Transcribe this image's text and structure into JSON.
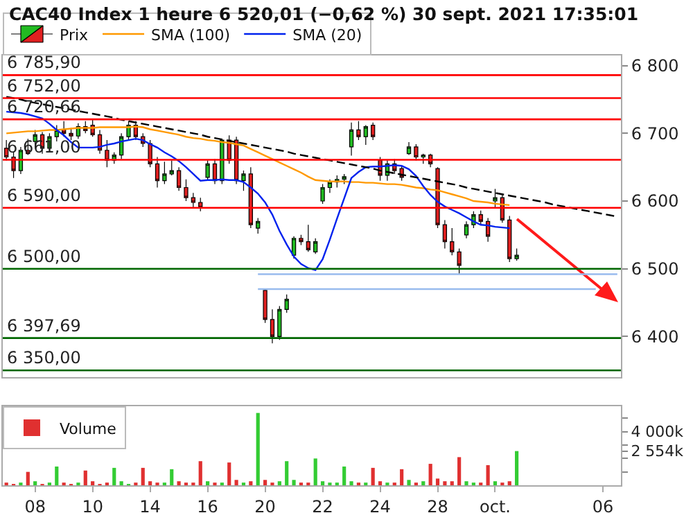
{
  "chart_data": [
    {
      "type": "candlestick",
      "title": "CAC40 Index 1 heure 6 520,01 (−0,62 %) 30 sept. 2021 17:35:01",
      "ylim": [
        6340,
        6815
      ],
      "categories": [
        null,
        null,
        null,
        null,
        null,
        null,
        null,
        null,
        null,
        null,
        null,
        null,
        null,
        null,
        null,
        null,
        null,
        null,
        null,
        null,
        null,
        null,
        null,
        null,
        null,
        null,
        null,
        null,
        null,
        null,
        null,
        null,
        null,
        null,
        null,
        null,
        null,
        null,
        null,
        null,
        null,
        null,
        null,
        null,
        null,
        null,
        null,
        null,
        null,
        null,
        null,
        null,
        null,
        null,
        null,
        null,
        null,
        null,
        null,
        null,
        null,
        null,
        null,
        null,
        null,
        null,
        null,
        null,
        null,
        null,
        null,
        null,
        null,
        null,
        null,
        null,
        null,
        null,
        null,
        null,
        null,
        null,
        null,
        null,
        null,
        null
      ],
      "yticks": [
        {
          "value": 6800,
          "label": "6 800"
        },
        {
          "value": 6700,
          "label": "6 700"
        },
        {
          "value": 6600,
          "label": "6 600"
        },
        {
          "value": 6500,
          "label": "6 500"
        },
        {
          "value": 6400,
          "label": "6 400"
        }
      ],
      "tick_labels": "y",
      "legend": "top left",
      "ref_lines": [
        {
          "axis": "y",
          "value": 6785.9,
          "label": "6 785,90",
          "color": "#ff0000"
        },
        {
          "axis": "y",
          "value": 6752,
          "label": "6 752,00",
          "color": "#ff0000"
        },
        {
          "axis": "y",
          "value": 6720.66,
          "label": "6 720,66",
          "color": "#ff0000"
        },
        {
          "axis": "y",
          "value": 6661,
          "label": "6 661,00",
          "color": "#ff0000"
        },
        {
          "axis": "y",
          "value": 6590,
          "label": "6 590,00",
          "color": "#ff0000"
        },
        {
          "axis": "y",
          "value": 6500,
          "label": "6 500,00",
          "color": "#006600"
        },
        {
          "axis": "y",
          "value": 6397.69,
          "label": "6 397,69",
          "color": "#006600"
        },
        {
          "axis": "y",
          "value": 6350,
          "label": "6 350,00",
          "color": "#006600"
        }
      ],
      "series": [
        {
          "name": "Prix",
          "type": "candlestick",
          "ohlc": [
            [
              6678,
              6690,
              6660,
              6665
            ],
            [
              6665,
              6672,
              6634,
              6645
            ],
            [
              6645,
              6680,
              6640,
              6675
            ],
            [
              6675,
              6692,
              6668,
              6670
            ],
            [
              6688,
              6705,
              6680,
              6698
            ],
            [
              6698,
              6702,
              6670,
              6678
            ],
            [
              6678,
              6700,
              6675,
              6695
            ],
            [
              6695,
              6712,
              6688,
              6705
            ],
            [
              6705,
              6718,
              6695,
              6700
            ],
            [
              6700,
              6708,
              6690,
              6696
            ],
            [
              6696,
              6715,
              6692,
              6710
            ],
            [
              6710,
              6718,
              6700,
              6704
            ],
            [
              6712,
              6720,
              6695,
              6698
            ],
            [
              6698,
              6705,
              6670,
              6675
            ],
            [
              6675,
              6690,
              6650,
              6660
            ],
            [
              6660,
              6672,
              6655,
              6668
            ],
            [
              6668,
              6700,
              6662,
              6695
            ],
            [
              6695,
              6718,
              6690,
              6712
            ],
            [
              6712,
              6718,
              6690,
              6695
            ],
            [
              6695,
              6700,
              6680,
              6685
            ],
            [
              6685,
              6690,
              6650,
              6655
            ],
            [
              6655,
              6665,
              6620,
              6630
            ],
            [
              6630,
              6658,
              6625,
              6640
            ],
            [
              6640,
              6660,
              6638,
              6645
            ],
            [
              6645,
              6650,
              6615,
              6620
            ],
            [
              6620,
              6632,
              6600,
              6605
            ],
            [
              6605,
              6612,
              6590,
              6598
            ],
            [
              6598,
              6605,
              6585,
              6590
            ],
            [
              6635,
              6660,
              6630,
              6655
            ],
            [
              6655,
              6662,
              6625,
              6630
            ],
            [
              6630,
              6692,
              6625,
              6690
            ],
            [
              6690,
              6697,
              6655,
              6660
            ],
            [
              6690,
              6695,
              6625,
              6630
            ],
            [
              6630,
              6645,
              6615,
              6640
            ],
            [
              6640,
              6650,
              6560,
              6565
            ],
            [
              6560,
              6575,
              6552,
              6570
            ],
            [
              6468,
              6470,
              6420,
              6425
            ],
            [
              6425,
              6440,
              6390,
              6400
            ],
            [
              6400,
              6445,
              6395,
              6440
            ],
            [
              6440,
              6462,
              6435,
              6455
            ],
            [
              6520,
              6548,
              6515,
              6545
            ],
            [
              6545,
              6550,
              6535,
              6540
            ],
            [
              6540,
              6565,
              6525,
              6528
            ],
            [
              6525,
              6545,
              6522,
              6540
            ],
            [
              6600,
              6625,
              6596,
              6620
            ],
            [
              6620,
              6632,
              6612,
              6628
            ],
            [
              6628,
              6638,
              6620,
              6632
            ],
            [
              6632,
              6640,
              6625,
              6636
            ],
            [
              6680,
              6716,
              6667,
              6705
            ],
            [
              6705,
              6718,
              6690,
              6695
            ],
            [
              6695,
              6712,
              6683,
              6710
            ],
            [
              6712,
              6716,
              6690,
              6695
            ],
            [
              6660,
              6665,
              6630,
              6638
            ],
            [
              6638,
              6660,
              6630,
              6655
            ],
            [
              6655,
              6662,
              6640,
              6645
            ],
            [
              6648,
              6652,
              6630,
              6635
            ],
            [
              6670,
              6687,
              6668,
              6680
            ],
            [
              6680,
              6684,
              6660,
              6665
            ],
            [
              6665,
              6670,
              6655,
              6668
            ],
            [
              6668,
              6670,
              6650,
              6655
            ],
            [
              6648,
              6650,
              6560,
              6565
            ],
            [
              6565,
              6572,
              6530,
              6540
            ],
            [
              6540,
              6560,
              6520,
              6525
            ],
            [
              6525,
              6530,
              6492,
              6505
            ],
            [
              6550,
              6570,
              6545,
              6565
            ],
            [
              6565,
              6585,
              6560,
              6580
            ],
            [
              6580,
              6586,
              6565,
              6570
            ],
            [
              6570,
              6575,
              6540,
              6548
            ],
            [
              6600,
              6618,
              6590,
              6605
            ],
            [
              6605,
              6610,
              6568,
              6572
            ],
            [
              6572,
              6578,
              6510,
              6515
            ],
            [
              6515,
              6530,
              6512,
              6520
            ],
            null,
            null,
            null,
            null,
            null,
            null,
            null,
            null,
            null,
            null,
            null,
            null,
            null,
            null
          ]
        },
        {
          "type": "line",
          "name": "SMA (100)",
          "color": "#ff9900",
          "values": [
            6700,
            6701,
            6702,
            6703,
            6703,
            6704,
            6705,
            6705,
            6706,
            6707,
            6708,
            6708,
            6708,
            6709,
            6709,
            6709,
            6709,
            6709,
            6710,
            6709,
            6706,
            6704,
            6702,
            6700,
            6698,
            6695,
            6693,
            6692,
            6690,
            6689,
            6687,
            6686,
            6684,
            6682,
            6677,
            6672,
            6667,
            6662,
            6657,
            6652,
            6647,
            6642,
            6636,
            6631,
            6630,
            6629,
            6629,
            6629,
            6628,
            6628,
            6627,
            6627,
            6626,
            6625,
            6625,
            6624,
            6622,
            6620,
            6619,
            6617,
            6616,
            6613,
            6610,
            6607,
            6604,
            6600,
            6599,
            6598,
            6596,
            6595,
            6594,
            null,
            null,
            null,
            null,
            null,
            null,
            null,
            null,
            null,
            null,
            null,
            null,
            null,
            null,
            null
          ]
        },
        {
          "type": "line",
          "name": "SMA (20)",
          "color": "#0022ee",
          "values": [
            6732,
            6731,
            6730,
            6728,
            6725,
            6722,
            6714,
            6705,
            6697,
            6687,
            6679,
            6679,
            6679,
            6680,
            6683,
            6685,
            6688,
            6690,
            6692,
            6690,
            6684,
            6679,
            6672,
            6666,
            6659,
            6650,
            6640,
            6630,
            6631,
            6631,
            6632,
            6631,
            6631,
            6628,
            6620,
            6611,
            6598,
            6580,
            6556,
            6536,
            6518,
            6507,
            6501,
            6498,
            6514,
            6543,
            6574,
            6604,
            6634,
            6643,
            6650,
            6651,
            6651,
            6652,
            6653,
            6652,
            6647,
            6637,
            6622,
            6609,
            6599,
            6592,
            6587,
            6582,
            6576,
            6570,
            6565,
            6564,
            6562,
            6561,
            6560,
            null,
            null,
            null,
            null,
            null,
            null,
            null,
            null,
            null,
            null,
            null,
            null,
            null,
            null,
            null
          ]
        },
        {
          "type": "line",
          "color": "#000000",
          "line_style": "dashed",
          "values": [
            6754,
            6752,
            6750,
            6747,
            6745,
            6743,
            6741,
            6739,
            6737,
            6735,
            6733,
            6731,
            6729,
            6727,
            6725,
            6723,
            6720,
            6718,
            6716,
            6714,
            6712,
            6710,
            6708,
            6706,
            6704,
            6702,
            6700,
            6698,
            6695,
            6693,
            6691,
            6689,
            6687,
            6685,
            6683,
            6681,
            6679,
            6677,
            6675,
            6673,
            6670,
            6668,
            6666,
            6664,
            6662,
            6660,
            6658,
            6656,
            6654,
            6652,
            6650,
            6648,
            6645,
            6643,
            6641,
            6639,
            6637,
            6635,
            6633,
            6631,
            6629,
            6627,
            6625,
            6623,
            6620,
            6618,
            6616,
            6614,
            6612,
            6610,
            6608,
            6606,
            6604,
            6602,
            6600,
            6598,
            6595,
            6593,
            6591,
            6589,
            6587,
            6585,
            6583,
            6581,
            6579,
            6577
          ]
        },
        {
          "type": "line",
          "color": "#99bbee",
          "values": [
            null,
            null,
            null,
            null,
            null,
            null,
            null,
            null,
            null,
            null,
            null,
            null,
            null,
            null,
            null,
            null,
            null,
            null,
            null,
            null,
            null,
            null,
            null,
            null,
            null,
            null,
            null,
            null,
            null,
            null,
            null,
            null,
            null,
            null,
            null,
            6492,
            6492,
            6492,
            6492,
            6492,
            6492,
            6492,
            6492,
            6492,
            6492,
            6492,
            6492,
            6492,
            6492,
            6492,
            6492,
            6492,
            6492,
            6492,
            6492,
            6492,
            6492,
            6492,
            6492,
            6492,
            6492,
            6492,
            6492,
            6492,
            6492,
            6492,
            6492,
            6492,
            6492,
            6492,
            6492,
            6492,
            6492,
            6492,
            6492,
            6492,
            6492,
            6492,
            6492,
            6492,
            6492,
            6492,
            6492,
            6492,
            6492,
            6492
          ]
        },
        {
          "type": "line",
          "color": "#99bbee",
          "values": [
            null,
            null,
            null,
            null,
            null,
            null,
            null,
            null,
            null,
            null,
            null,
            null,
            null,
            null,
            null,
            null,
            null,
            null,
            null,
            null,
            null,
            null,
            null,
            null,
            null,
            null,
            null,
            null,
            null,
            null,
            null,
            null,
            null,
            null,
            null,
            6470,
            6470,
            6470,
            6470,
            6470,
            6470,
            6470,
            6470,
            6470,
            6470,
            6470,
            6470,
            6470,
            6470,
            6470,
            6470,
            6470,
            6470,
            6470,
            6470,
            6470,
            6470,
            6470,
            6470,
            6470,
            6470,
            6470,
            6470,
            6470,
            6470,
            6470,
            6470,
            6470,
            6470,
            6470,
            6470,
            6470,
            6470,
            6470,
            6470,
            6470,
            6470,
            6470,
            6470,
            6470,
            6470,
            6470,
            6470,
            null,
            null,
            null
          ]
        }
      ]
    },
    {
      "type": "bar",
      "ylim": [
        0,
        5900
      ],
      "legend": "top left",
      "categories": [
        null,
        null,
        null,
        null,
        "08",
        null,
        null,
        null,
        null,
        null,
        null,
        null,
        "10",
        null,
        null,
        null,
        null,
        null,
        null,
        null,
        "14",
        null,
        null,
        null,
        null,
        null,
        null,
        null,
        "16",
        null,
        null,
        null,
        null,
        null,
        null,
        null,
        "20",
        null,
        null,
        null,
        null,
        null,
        null,
        null,
        "22",
        null,
        null,
        null,
        null,
        null,
        null,
        null,
        "24",
        null,
        null,
        null,
        null,
        null,
        null,
        null,
        "28",
        null,
        null,
        null,
        null,
        null,
        null,
        null,
        "oct.",
        null,
        null,
        null,
        null,
        null,
        null,
        null,
        null,
        null,
        null,
        null,
        null,
        null,
        null,
        "06",
        null,
        null
      ],
      "yticks": [
        {
          "value": 1000,
          "label": null
        },
        {
          "value": 2000,
          "label": null
        },
        {
          "value": 2554,
          "label": "2 554k"
        },
        {
          "value": 3000,
          "label": null
        },
        {
          "value": 4000,
          "label": "4 000k"
        },
        {
          "value": 5000,
          "label": null
        }
      ],
      "series": [
        {
          "name": "Volume",
          "values": [
            200,
            100,
            200,
            1000,
            300,
            100,
            200,
            1400,
            200,
            100,
            200,
            1100,
            300,
            100,
            200,
            1300,
            300,
            100,
            200,
            1300,
            300,
            200,
            200,
            1200,
            300,
            200,
            200,
            1800,
            300,
            200,
            200,
            1700,
            400,
            200,
            300,
            5400,
            400,
            200,
            300,
            1800,
            400,
            200,
            200,
            2000,
            300,
            200,
            200,
            1400,
            300,
            200,
            200,
            1300,
            300,
            200,
            200,
            1200,
            400,
            200,
            300,
            1600,
            500,
            300,
            300,
            2100,
            300,
            200,
            200,
            1500,
            300,
            200,
            300,
            2554,
            null,
            null,
            null,
            null,
            null,
            null,
            null,
            null,
            null,
            null,
            null,
            null,
            null,
            null
          ],
          "colors": [
            "#e03030",
            "#e03030",
            "#33cc33",
            "#e03030",
            "#33cc33",
            "#e03030",
            "#33cc33",
            "#33cc33",
            "#e03030",
            "#e03030",
            "#33cc33",
            "#e03030",
            "#e03030",
            "#e03030",
            "#e03030",
            "#33cc33",
            "#33cc33",
            "#33cc33",
            "#e03030",
            "#e03030",
            "#e03030",
            "#e03030",
            "#33cc33",
            "#33cc33",
            "#e03030",
            "#e03030",
            "#e03030",
            "#e03030",
            "#33cc33",
            "#e03030",
            "#33cc33",
            "#e03030",
            "#e03030",
            "#33cc33",
            "#e03030",
            "#33cc33",
            "#e03030",
            "#e03030",
            "#33cc33",
            "#33cc33",
            "#33cc33",
            "#e03030",
            "#e03030",
            "#33cc33",
            "#33cc33",
            "#33cc33",
            "#33cc33",
            "#33cc33",
            "#33cc33",
            "#e03030",
            "#33cc33",
            "#e03030",
            "#e03030",
            "#33cc33",
            "#e03030",
            "#e03030",
            "#33cc33",
            "#e03030",
            "#33cc33",
            "#e03030",
            "#e03030",
            "#e03030",
            "#e03030",
            "#e03030",
            "#33cc33",
            "#33cc33",
            "#e03030",
            "#e03030",
            "#33cc33",
            "#e03030",
            "#e03030",
            "#33cc33",
            null,
            null,
            null,
            null,
            null,
            null,
            null,
            null,
            null,
            null,
            null,
            null,
            null,
            null
          ]
        }
      ]
    }
  ]
}
